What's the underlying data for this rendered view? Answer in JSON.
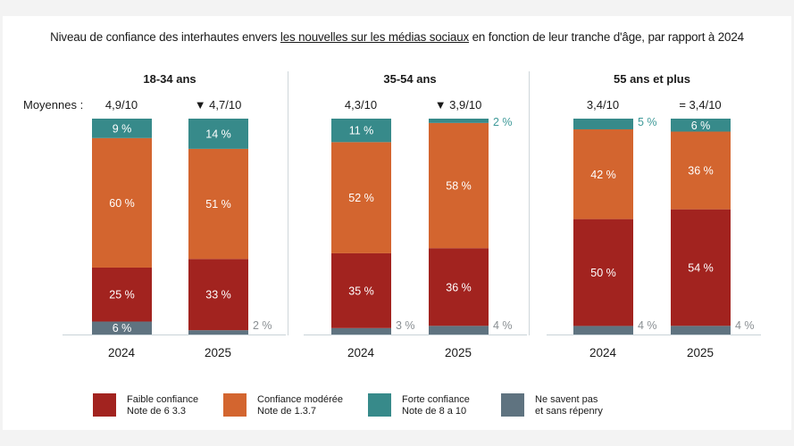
{
  "title": {
    "before": "Niveau de confiance des interhautes envers ",
    "underlined": "les nouvelles sur les médias sociaux",
    "after": " en fonction de leur tranche d'âge, par rapport à 2024"
  },
  "averages_prefix": "Moyennes :",
  "colors": {
    "faible": "#a2231f",
    "moderee": "#d3652f",
    "forte": "#378a8a",
    "nsp": "#5f7380",
    "outside_gray": "#8a8f93",
    "outside_teal": "#3f9a99"
  },
  "legend": [
    {
      "key": "faible",
      "line1": "Faible confiance",
      "line2": "Note de 6 3.3"
    },
    {
      "key": "moderee",
      "line1": "Confiance modérée",
      "line2": "Note de 1.3.7"
    },
    {
      "key": "forte",
      "line1": "Forte confiance",
      "line2": "Note de 8 a 10"
    },
    {
      "key": "nsp",
      "line1": "Ne savent pas",
      "line2": "et sans répenry"
    }
  ],
  "chart_data": {
    "type": "bar",
    "stacked": true,
    "title": "Niveau de confiance des internautes envers les nouvelles sur les médias sociaux en fonction de leur tranche d'âge, par rapport à 2024",
    "xlabel": "",
    "ylabel": "",
    "ylim": [
      0,
      100
    ],
    "unit": "%",
    "grid": false,
    "legend_position": "bottom",
    "stack_order": [
      "Ne savent pas et sans réponse",
      "Faible confiance",
      "Confiance modérée",
      "Forte confiance"
    ],
    "groups": [
      {
        "label": "18-34 ans",
        "bars": [
          {
            "year": "2024",
            "average": "4,9/10",
            "nsp": 6,
            "faible": 25,
            "moderee": 60,
            "forte": 9
          },
          {
            "year": "2025",
            "average": "▼ 4,7/10",
            "nsp": 2,
            "faible": 33,
            "moderee": 51,
            "forte": 14
          }
        ]
      },
      {
        "label": "35-54 ans",
        "bars": [
          {
            "year": "2024",
            "average": "4,3/10",
            "nsp": 3,
            "faible": 35,
            "moderee": 52,
            "forte": 11
          },
          {
            "year": "2025",
            "average": "▼ 3,9/10",
            "nsp": 4,
            "faible": 36,
            "moderee": 58,
            "forte": 2
          }
        ]
      },
      {
        "label": "55 ans et plus",
        "bars": [
          {
            "year": "2024",
            "average": "3,4/10",
            "nsp": 4,
            "faible": 50,
            "moderee": 42,
            "forte": 5
          },
          {
            "year": "2025",
            "average": "= 3,4/10",
            "nsp": 4,
            "faible": 54,
            "moderee": 36,
            "forte": 6
          }
        ]
      }
    ],
    "series": [
      {
        "name": "Faible confiance (Note de 0 à 3)",
        "key": "faible",
        "values": [
          25,
          33,
          35,
          36,
          50,
          54
        ]
      },
      {
        "name": "Confiance modérée (Note de 4 à 7)",
        "key": "moderee",
        "values": [
          60,
          51,
          52,
          58,
          42,
          36
        ]
      },
      {
        "name": "Forte confiance (Note de 8 à 10)",
        "key": "forte",
        "values": [
          9,
          14,
          11,
          2,
          5,
          6
        ]
      },
      {
        "name": "Ne savent pas et sans réponse",
        "key": "nsp",
        "values": [
          6,
          2,
          3,
          4,
          4,
          4
        ]
      }
    ],
    "categories": [
      "18-34 ans 2024",
      "18-34 ans 2025",
      "35-54 ans 2024",
      "35-54 ans 2025",
      "55 ans et plus 2024",
      "55 ans et plus 2025"
    ]
  }
}
